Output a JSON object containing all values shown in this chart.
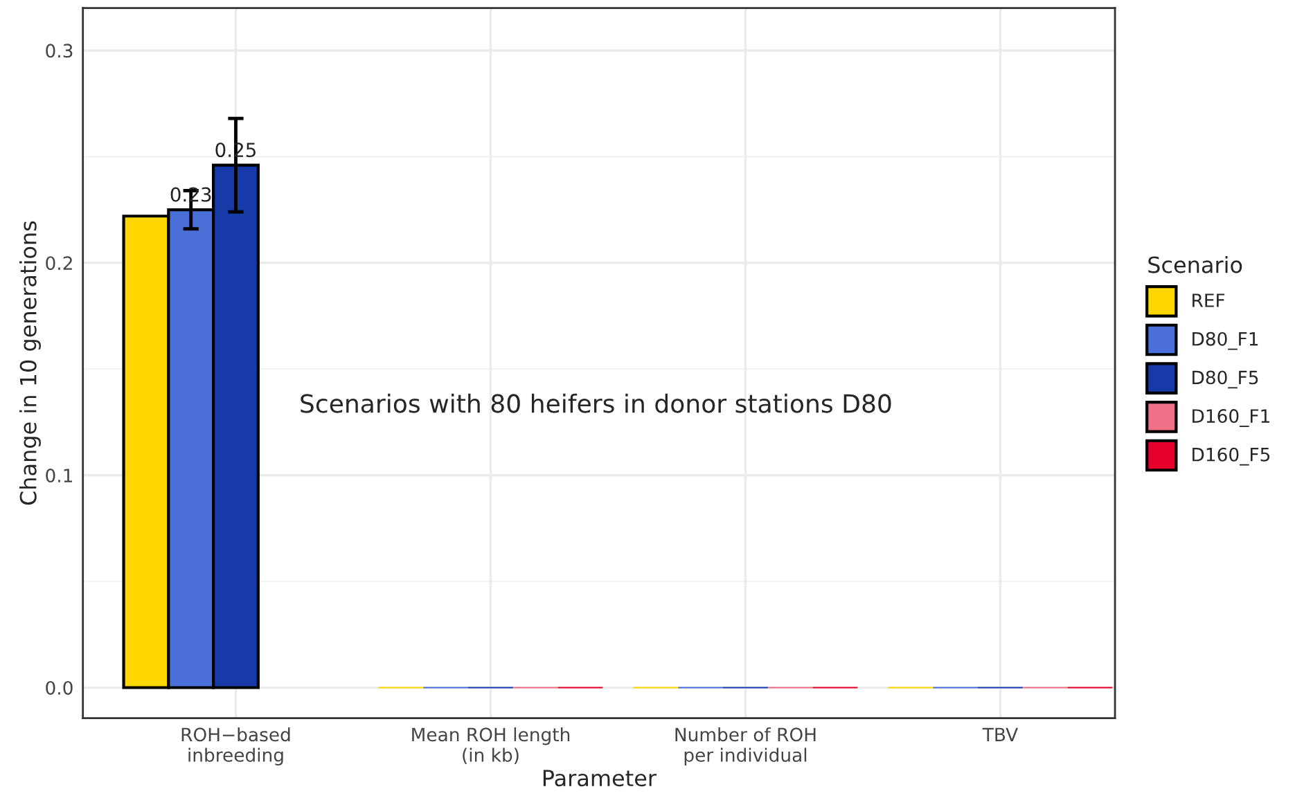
{
  "chart_data": {
    "type": "bar",
    "xlabel": "Parameter",
    "ylabel": "Change in 10 generations",
    "legend_title": "Scenario",
    "legend": "right",
    "categories": [
      "ROH−based\ninbreeding",
      "Mean ROH length\n(in kb)",
      "Number of ROH\nper individual",
      "TBV"
    ],
    "series": [
      {
        "name": "REF",
        "color": "#ffd700",
        "values": [
          0.222,
          0,
          0,
          0
        ]
      },
      {
        "name": "D80_F1",
        "color": "#4a6fd8",
        "values": [
          0.225,
          0,
          0,
          0
        ],
        "errors": [
          [
            0.216,
            0.234
          ],
          null,
          null,
          null
        ],
        "value_labels": [
          "0.23",
          null,
          null,
          null
        ]
      },
      {
        "name": "D80_F5",
        "color": "#173aa8",
        "values": [
          0.246,
          0,
          0,
          0
        ],
        "errors": [
          [
            0.224,
            0.268
          ],
          null,
          null,
          null
        ],
        "value_labels": [
          "0.25",
          null,
          null,
          null
        ]
      },
      {
        "name": "D160_F1",
        "color": "#f07087",
        "values": [
          null,
          0,
          0,
          0
        ]
      },
      {
        "name": "D160_F5",
        "color": "#e8002d",
        "values": [
          null,
          0,
          0,
          0
        ]
      }
    ],
    "ylim": [
      -0.0144,
      0.32
    ],
    "yticks": [
      {
        "value": 0,
        "label": "0.0"
      },
      {
        "value": 0.1,
        "label": "0.1"
      },
      {
        "value": 0.2,
        "label": "0.2"
      },
      {
        "value": 0.3,
        "label": "0.3"
      }
    ],
    "grid": true,
    "annotations": [
      "Scenarios with 80 heifers in donor stations D80"
    ]
  }
}
